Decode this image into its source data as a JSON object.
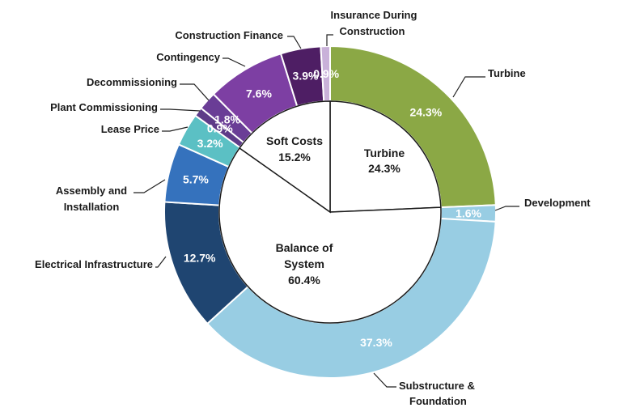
{
  "chart_data": {
    "type": "pie",
    "subtype": "donut-with-inner-pie",
    "title": "",
    "outer_ring": [
      {
        "label": "Turbine",
        "value": 24.3,
        "value_label": "24.3%",
        "color": "#8BA845"
      },
      {
        "label": "Development",
        "value": 1.6,
        "value_label": "1.6%",
        "color": "#98CDE3"
      },
      {
        "label": "Substructure & Foundation",
        "value": 37.3,
        "value_label": "37.3%",
        "color": "#98CDE3"
      },
      {
        "label": "Electrical Infrastructure",
        "value": 12.7,
        "value_label": "12.7%",
        "color": "#1F4571"
      },
      {
        "label": "Assembly and Installation",
        "value": 5.7,
        "value_label": "5.7%",
        "color": "#3572BD"
      },
      {
        "label": "Lease Price",
        "value": 3.2,
        "value_label": "3.2%",
        "color": "#5BC0C4"
      },
      {
        "label": "Plant Commissioning",
        "value": 0.9,
        "value_label": "0.9%",
        "color": "#5E3B88"
      },
      {
        "label": "Decommissioning",
        "value": 1.8,
        "value_label": "1.8%",
        "color": "#6A3D96"
      },
      {
        "label": "Contingency",
        "value": 7.6,
        "value_label": "7.6%",
        "color": "#7D3FA3"
      },
      {
        "label": "Construction Finance",
        "value": 3.9,
        "value_label": "3.9%",
        "color": "#4E1E64"
      },
      {
        "label": "Insurance During Construction",
        "value": 0.9,
        "value_label": "0.9%",
        "color": "#C9B1D9"
      }
    ],
    "inner_pie": [
      {
        "label": "Turbine",
        "value": 24.3,
        "value_label": "24.3%"
      },
      {
        "label": "Balance of System",
        "value": 60.4,
        "value_label": "60.4%"
      },
      {
        "label": "Soft Costs",
        "value": 15.2,
        "value_label": "15.2%"
      }
    ],
    "category_labels": {
      "turbine": "Turbine",
      "development": "Development",
      "substructure_1": "Substructure &",
      "substructure_2": "Foundation",
      "electrical": "Electrical Infrastructure",
      "assembly_1": "Assembly and",
      "assembly_2": "Installation",
      "lease": "Lease Price",
      "commissioning": "Plant Commissioning",
      "decommissioning": "Decommissioning",
      "contingency": "Contingency",
      "finance": "Construction Finance",
      "insurance_1": "Insurance During",
      "insurance_2": "Construction"
    },
    "inner_labels": {
      "turbine_1": "Turbine",
      "turbine_2": "24.3%",
      "bos_1": "Balance of",
      "bos_2": "System",
      "bos_3": "60.4%",
      "soft_1": "Soft Costs",
      "soft_2": "15.2%"
    }
  }
}
